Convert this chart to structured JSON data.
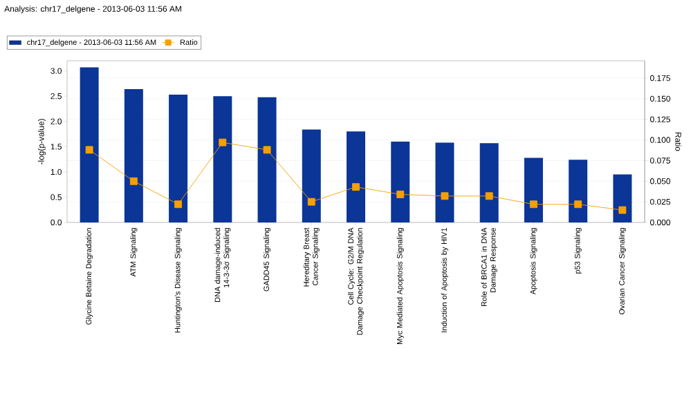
{
  "chart_data": {
    "type": "bar",
    "title": "Analysis: chr17_delgene - 2013-06-03 11:56 AM",
    "ylabel": "-log(p-value)",
    "y2label": "Ratio",
    "categories": [
      "Glycine Betaine Degradation",
      "ATM Signaling",
      "Huntington's Disease Signaling",
      "DNA damage-induced 14-3-3σ Signaling",
      "GADD45 Signaling",
      "Hereditary Breast Cancer Signaling",
      "Cell Cycle: G2/M DNA Damage Checkpoint Regulation",
      "Myc Mediated Apoptosis Signaling",
      "Induction of Apoptosis by HIV1",
      "Role of BRCA1 in DNA Damage Response",
      "Apoptosis Signaling",
      "p53 Signaling",
      "Ovarian Cancer Signaling"
    ],
    "series": [
      {
        "name": "chr17_delgene - 2013-06-03 11:56 AM",
        "color": "#0b3596",
        "values": [
          3.07,
          2.64,
          2.53,
          2.5,
          2.48,
          1.84,
          1.8,
          1.6,
          1.58,
          1.57,
          1.28,
          1.24,
          0.95
        ]
      },
      {
        "name": "Ratio",
        "type": "line",
        "axis": "y2",
        "color": "#f5a000",
        "marker": "square",
        "values": [
          0.088,
          0.05,
          0.022,
          0.097,
          0.088,
          0.025,
          0.043,
          0.034,
          0.032,
          0.032,
          0.022,
          0.022,
          0.015
        ]
      }
    ],
    "ylim": [
      0,
      3.2
    ],
    "yticks": [
      {
        "value": 0,
        "label": "0.0"
      },
      {
        "value": 0.5,
        "label": "0.5"
      },
      {
        "value": 1,
        "label": "1.0"
      },
      {
        "value": 1.5,
        "label": "1.5"
      },
      {
        "value": 2,
        "label": "2.0"
      },
      {
        "value": 2.5,
        "label": "2.5"
      },
      {
        "value": 3,
        "label": "3.0"
      }
    ],
    "y2lim": [
      0,
      0.196
    ],
    "y2ticks": [
      {
        "value": 0,
        "label": "0.000"
      },
      {
        "value": 0.025,
        "label": "0.025"
      },
      {
        "value": 0.05,
        "label": "0.050"
      },
      {
        "value": 0.075,
        "label": "0.075"
      },
      {
        "value": 0.1,
        "label": "0.100"
      },
      {
        "value": 0.125,
        "label": "0.125"
      },
      {
        "value": 0.15,
        "label": "0.150"
      },
      {
        "value": 0.175,
        "label": "0.175"
      }
    ],
    "grid": "y",
    "legend": "top left"
  }
}
